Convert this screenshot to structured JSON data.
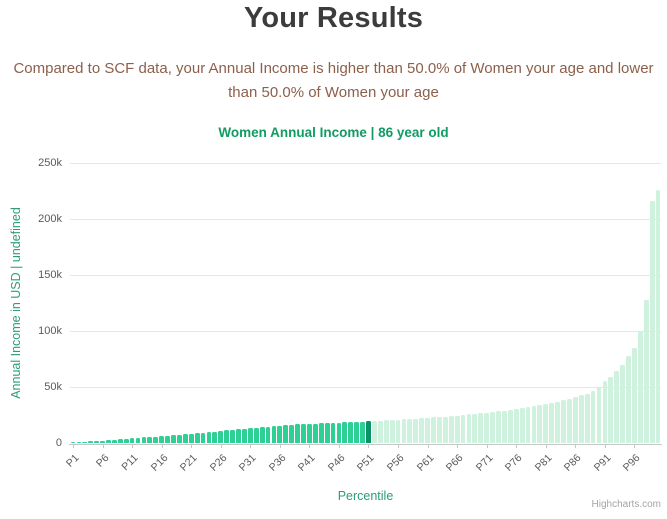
{
  "page": {
    "title": "Your Results",
    "subtitle": "Compared to SCF data, your Annual Income is higher than 50.0% of Women your age and lower than 50.0% of Women your age"
  },
  "chart_data": {
    "type": "bar",
    "title": "Women Annual Income | 86 year old",
    "xlabel": "Percentile",
    "ylabel": "Annual Income in USD | undefined",
    "legend": "none",
    "grid": true,
    "ylim": [
      0,
      250000
    ],
    "category_prefix": "P",
    "x_tick_labels": [
      "P1",
      "P6",
      "P11",
      "P16",
      "P21",
      "P26",
      "P31",
      "P36",
      "P41",
      "P46",
      "P51",
      "P56",
      "P61",
      "P66",
      "P71",
      "P76",
      "P81",
      "P86",
      "P91",
      "P96"
    ],
    "y_ticks": [
      {
        "label": "0",
        "value": 0
      },
      {
        "label": "50k",
        "value": 50000
      },
      {
        "label": "100k",
        "value": 100000
      },
      {
        "label": "150k",
        "value": 150000
      },
      {
        "label": "200k",
        "value": 200000
      },
      {
        "label": "250k",
        "value": 250000
      }
    ],
    "values": [
      400,
      700,
      1000,
      1400,
      1800,
      2200,
      2600,
      3000,
      3400,
      3800,
      4200,
      4600,
      5000,
      5400,
      5800,
      6200,
      6600,
      7000,
      7400,
      7800,
      8200,
      8700,
      9200,
      9700,
      10200,
      10700,
      11200,
      11700,
      12200,
      12700,
      13200,
      13700,
      14200,
      14700,
      15100,
      15500,
      15900,
      16300,
      16600,
      16900,
      17200,
      17400,
      17600,
      17800,
      18000,
      18200,
      18400,
      18600,
      18800,
      19000,
      19300,
      19600,
      19900,
      20200,
      20500,
      20800,
      21100,
      21400,
      21700,
      22000,
      22400,
      22800,
      23200,
      23600,
      24000,
      24500,
      25000,
      25500,
      26000,
      26500,
      27000,
      27600,
      28200,
      28800,
      29500,
      30200,
      31000,
      31800,
      32700,
      33600,
      34600,
      35700,
      36900,
      38200,
      39600,
      41000,
      42500,
      44000,
      46000,
      50000,
      55000,
      59000,
      64000,
      70000,
      78000,
      85000,
      100000,
      128000,
      216000,
      226000
    ],
    "highlight_percentile": 51,
    "colors": {
      "below": "#2fd095",
      "you": "#0a9166",
      "above": "#cff2df"
    }
  },
  "style_colors": {
    "title": "#3c3c3c",
    "subtitle": "#8d604c",
    "chart_title": "#109c63",
    "axis_titles": "#2b9e78",
    "tick_labels": "#5a5a5a",
    "gridline": "#e6e6e6",
    "axis_line": "#c6c6c6",
    "credit": "#a5a5a5"
  },
  "credit": {
    "label": "Highcharts.com"
  }
}
